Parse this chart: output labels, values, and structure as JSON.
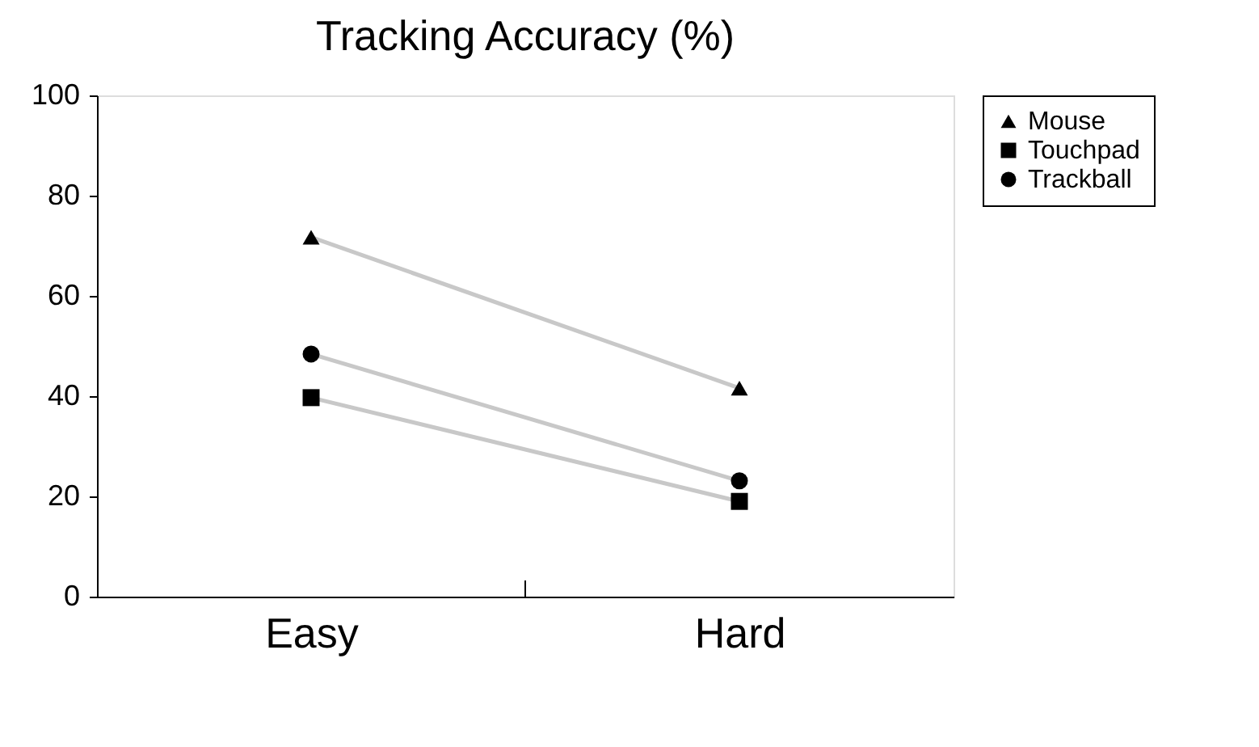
{
  "chart_data": {
    "type": "line",
    "title": "Tracking Accuracy (%)",
    "categories": [
      "Easy",
      "Hard"
    ],
    "series": [
      {
        "name": "Mouse",
        "color": "#000000",
        "marker": "triangle",
        "values": [
          71.7,
          41.6
        ]
      },
      {
        "name": "Touchpad",
        "color": "#000000",
        "marker": "square",
        "values": [
          39.7,
          19.0
        ]
      },
      {
        "name": "Trackball",
        "color": "#000000",
        "marker": "circle",
        "values": [
          48.4,
          23.1
        ]
      }
    ],
    "ylim": [
      0,
      100
    ],
    "yticks": [
      0,
      20,
      40,
      60,
      80,
      100
    ],
    "grid": false,
    "legend": "right"
  }
}
